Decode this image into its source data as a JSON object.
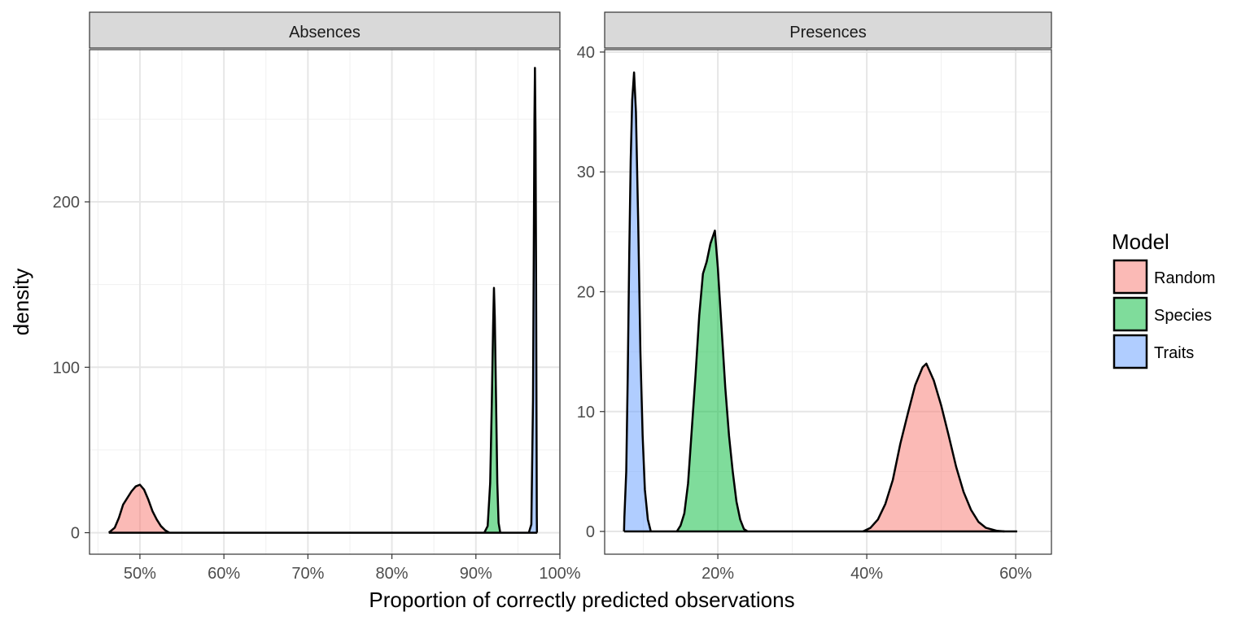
{
  "chart_data": {
    "type": "area",
    "subtype": "faceted density plot",
    "xlabel": "Proportion of correctly predicted observations",
    "ylabel": "density",
    "legend": {
      "title": "Model",
      "placement": "right",
      "entries": [
        {
          "name": "Random",
          "color": "#F8766D"
        },
        {
          "name": "Species",
          "color": "#00BA38"
        },
        {
          "name": "Traits",
          "color": "#619CFF"
        }
      ]
    },
    "fill_alpha": 0.5,
    "outline_color": "#000000",
    "grid": true,
    "panels": [
      {
        "title": "Absences",
        "xlim": [
          0.44,
          1.0
        ],
        "ylim": [
          -13,
          292
        ],
        "x_ticks": [
          0.5,
          0.6,
          0.7,
          0.8,
          0.9,
          1.0
        ],
        "x_tick_labels": [
          "50%",
          "60%",
          "70%",
          "80%",
          "90%",
          "100%"
        ],
        "y_ticks": [
          0,
          100,
          200
        ],
        "y_tick_labels": [
          "0",
          "100",
          "200"
        ],
        "baseline_range": [
          0.463,
          0.973
        ],
        "series": [
          {
            "name": "Random",
            "points": [
              [
                0.463,
                0
              ],
              [
                0.47,
                3
              ],
              [
                0.475,
                9
              ],
              [
                0.48,
                17
              ],
              [
                0.485,
                21
              ],
              [
                0.49,
                25
              ],
              [
                0.495,
                28
              ],
              [
                0.5,
                29
              ],
              [
                0.505,
                26
              ],
              [
                0.51,
                20
              ],
              [
                0.515,
                13
              ],
              [
                0.52,
                8
              ],
              [
                0.525,
                4
              ],
              [
                0.53,
                1.5
              ],
              [
                0.535,
                0
              ]
            ]
          },
          {
            "name": "Species",
            "points": [
              [
                0.91,
                0
              ],
              [
                0.914,
                4
              ],
              [
                0.917,
                30
              ],
              [
                0.919,
                80
              ],
              [
                0.9205,
                125
              ],
              [
                0.9215,
                148
              ],
              [
                0.9225,
                130
              ],
              [
                0.924,
                80
              ],
              [
                0.9255,
                30
              ],
              [
                0.927,
                6
              ],
              [
                0.929,
                0
              ]
            ]
          },
          {
            "name": "Traits",
            "points": [
              [
                0.963,
                0
              ],
              [
                0.966,
                5
              ],
              [
                0.968,
                80
              ],
              [
                0.969,
                180
              ],
              [
                0.9697,
                250
              ],
              [
                0.9703,
                281
              ],
              [
                0.971,
                240
              ],
              [
                0.9717,
                150
              ],
              [
                0.9722,
                60
              ],
              [
                0.9725,
                10
              ],
              [
                0.9727,
                0
              ]
            ]
          }
        ]
      },
      {
        "title": "Presences",
        "xlim": [
          0.048,
          0.648
        ],
        "ylim": [
          -1.9,
          40.2
        ],
        "x_ticks": [
          0.2,
          0.4,
          0.6
        ],
        "x_tick_labels": [
          "20%",
          "40%",
          "60%"
        ],
        "y_ticks": [
          0,
          10,
          20,
          30,
          40
        ],
        "y_tick_labels": [
          "0",
          "10",
          "20",
          "30",
          "40"
        ],
        "baseline_range": [
          0.074,
          0.602
        ],
        "series": [
          {
            "name": "Traits",
            "points": [
              [
                0.074,
                0
              ],
              [
                0.0745,
                1.2
              ],
              [
                0.077,
                5
              ],
              [
                0.079,
                13
              ],
              [
                0.081,
                23
              ],
              [
                0.083,
                31
              ],
              [
                0.085,
                36
              ],
              [
                0.0875,
                38.3
              ],
              [
                0.09,
                35
              ],
              [
                0.093,
                26
              ],
              [
                0.096,
                15
              ],
              [
                0.099,
                8
              ],
              [
                0.102,
                3.5
              ],
              [
                0.106,
                1
              ],
              [
                0.11,
                0
              ]
            ]
          },
          {
            "name": "Species",
            "points": [
              [
                0.145,
                0
              ],
              [
                0.15,
                0.5
              ],
              [
                0.155,
                1.5
              ],
              [
                0.16,
                4
              ],
              [
                0.165,
                8.5
              ],
              [
                0.17,
                13
              ],
              [
                0.175,
                18
              ],
              [
                0.18,
                21.5
              ],
              [
                0.185,
                22.5
              ],
              [
                0.19,
                24
              ],
              [
                0.196,
                25.1
              ],
              [
                0.2,
                22
              ],
              [
                0.205,
                17
              ],
              [
                0.21,
                12
              ],
              [
                0.215,
                8
              ],
              [
                0.22,
                5
              ],
              [
                0.225,
                2.5
              ],
              [
                0.23,
                1
              ],
              [
                0.235,
                0.2
              ],
              [
                0.24,
                0
              ]
            ]
          },
          {
            "name": "Random",
            "points": [
              [
                0.395,
                0
              ],
              [
                0.405,
                0.3
              ],
              [
                0.415,
                1
              ],
              [
                0.425,
                2.3
              ],
              [
                0.435,
                4.3
              ],
              [
                0.445,
                7.3
              ],
              [
                0.455,
                9.8
              ],
              [
                0.465,
                12.2
              ],
              [
                0.475,
                13.7
              ],
              [
                0.48,
                14
              ],
              [
                0.49,
                12.6
              ],
              [
                0.5,
                10.5
              ],
              [
                0.51,
                8
              ],
              [
                0.52,
                5.4
              ],
              [
                0.53,
                3.3
              ],
              [
                0.54,
                1.8
              ],
              [
                0.55,
                0.8
              ],
              [
                0.56,
                0.3
              ],
              [
                0.575,
                0.05
              ],
              [
                0.585,
                0
              ]
            ]
          }
        ]
      }
    ]
  }
}
